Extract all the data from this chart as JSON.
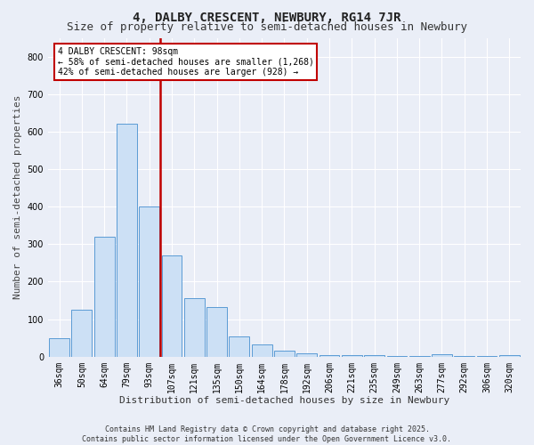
{
  "title": "4, DALBY CRESCENT, NEWBURY, RG14 7JR",
  "subtitle": "Size of property relative to semi-detached houses in Newbury",
  "xlabel": "Distribution of semi-detached houses by size in Newbury",
  "ylabel": "Number of semi-detached properties",
  "categories": [
    "36sqm",
    "50sqm",
    "64sqm",
    "79sqm",
    "93sqm",
    "107sqm",
    "121sqm",
    "135sqm",
    "150sqm",
    "164sqm",
    "178sqm",
    "192sqm",
    "206sqm",
    "221sqm",
    "235sqm",
    "249sqm",
    "263sqm",
    "277sqm",
    "292sqm",
    "306sqm",
    "320sqm"
  ],
  "values": [
    50,
    125,
    320,
    620,
    400,
    270,
    157,
    133,
    53,
    33,
    15,
    10,
    5,
    4,
    3,
    2,
    1,
    6,
    1,
    1,
    4
  ],
  "bar_color": "#cce0f5",
  "bar_edge_color": "#5b9bd5",
  "vline_pos": 4.5,
  "vline_color": "#c00000",
  "annotation_title": "4 DALBY CRESCENT: 98sqm",
  "annotation_line1": "← 58% of semi-detached houses are smaller (1,268)",
  "annotation_line2": "42% of semi-detached houses are larger (928) →",
  "annotation_box_color": "#ffffff",
  "annotation_box_edge": "#c00000",
  "footer1": "Contains HM Land Registry data © Crown copyright and database right 2025.",
  "footer2": "Contains public sector information licensed under the Open Government Licence v3.0.",
  "ylim": [
    0,
    850
  ],
  "yticks": [
    0,
    100,
    200,
    300,
    400,
    500,
    600,
    700,
    800
  ],
  "bg_color": "#eaeef7",
  "plot_bg_color": "#eaeef7",
  "grid_color": "#ffffff",
  "title_fontsize": 10,
  "subtitle_fontsize": 9,
  "axis_label_fontsize": 8,
  "tick_fontsize": 7,
  "footer_fontsize": 6
}
